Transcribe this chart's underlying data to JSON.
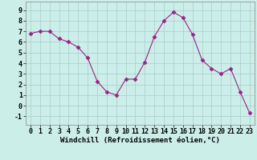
{
  "x": [
    0,
    1,
    2,
    3,
    4,
    5,
    6,
    7,
    8,
    9,
    10,
    11,
    12,
    13,
    14,
    15,
    16,
    17,
    18,
    19,
    20,
    21,
    22,
    23
  ],
  "y": [
    6.8,
    7.0,
    7.0,
    6.3,
    6.0,
    5.5,
    4.5,
    2.3,
    1.3,
    1.0,
    2.5,
    2.5,
    4.1,
    6.5,
    8.0,
    8.8,
    8.3,
    6.7,
    4.3,
    3.5,
    3.0,
    3.5,
    1.3,
    -0.7
  ],
  "line_color": "#992288",
  "marker": "D",
  "marker_size": 2.5,
  "bg_color": "#cceee8",
  "grid_color": "#aacccc",
  "xlabel": "Windchill (Refroidissement éolien,°C)",
  "xlabel_fontsize": 6.5,
  "tick_fontsize": 6.0,
  "ylim": [
    -1.8,
    9.8
  ],
  "xlim": [
    -0.5,
    23.5
  ],
  "yticks": [
    -1,
    0,
    1,
    2,
    3,
    4,
    5,
    6,
    7,
    8,
    9
  ],
  "xticks": [
    0,
    1,
    2,
    3,
    4,
    5,
    6,
    7,
    8,
    9,
    10,
    11,
    12,
    13,
    14,
    15,
    16,
    17,
    18,
    19,
    20,
    21,
    22,
    23
  ]
}
